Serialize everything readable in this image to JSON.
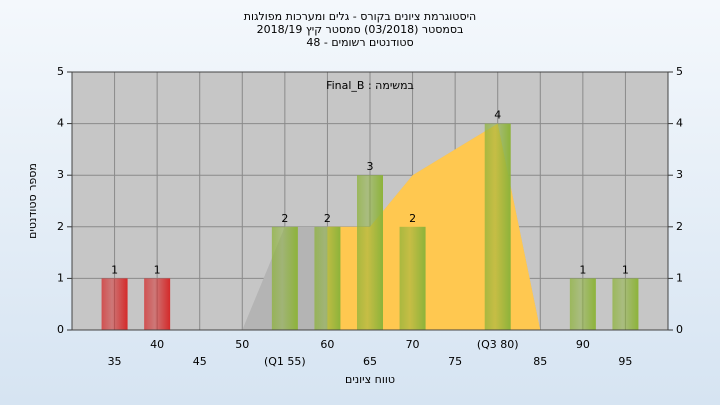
{
  "chart_data": {
    "type": "bar",
    "title": [
      "היסטוגרמת ציונים בקורס - גלים ומערכות מפולגות",
      "בסמסטר  (03/2018)  סמסטר קיץ  2018/19",
      "סטודנטים רשומים - 48"
    ],
    "x_label": "טווח ציונים",
    "y_label": "מספר סטודנטים",
    "categories": [
      "35",
      "40",
      "45",
      "50",
      "(Q1 55)",
      "60",
      "65",
      "70",
      "75",
      "(Q3 80)",
      "85",
      "90",
      "95"
    ],
    "values": [
      1,
      1,
      0,
      0,
      2,
      2,
      3,
      2,
      0,
      4,
      0,
      1,
      1
    ],
    "colors": [
      "#d42a2a",
      "#d42a2a",
      "#8db33a",
      "#8db33a",
      "#8db33a",
      "#8db33a",
      "#8db33a",
      "#8db33a",
      "#8db33a",
      "#8db33a",
      "#8db33a",
      "#8db33a",
      "#8db33a"
    ],
    "areas": [
      {
        "color": "#b4b4b4",
        "values": [
          null,
          null,
          null,
          0,
          2,
          2,
          2,
          3,
          3.5,
          4,
          0,
          null,
          null
        ]
      },
      {
        "name": "Final_B : במשימה",
        "color": "#ffc850",
        "values": [
          null,
          null,
          null,
          null,
          null,
          2,
          2,
          3,
          3.5,
          4,
          0,
          null,
          null
        ]
      }
    ],
    "ylim": [
      0,
      5
    ],
    "yticks": [
      0,
      1,
      2,
      3,
      4,
      5
    ],
    "y2lim": [
      0,
      5
    ],
    "y2ticks": [
      0,
      1,
      2,
      3,
      4,
      5
    ],
    "grid": true
  }
}
